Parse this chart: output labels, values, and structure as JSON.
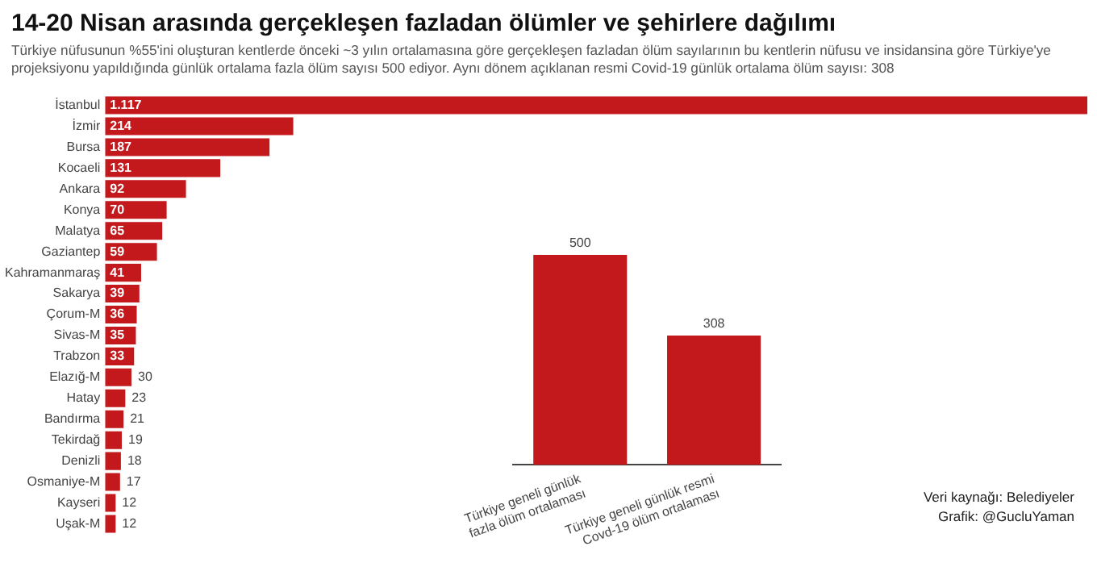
{
  "chart_data": [
    {
      "type": "bar",
      "orientation": "horizontal",
      "title": "14-20 Nisan arasında gerçekleşen fazladan ölümler ve şehirlere dağılımı",
      "subtitle": "Türkiye nüfusunun %55'ini oluşturan kentlerde önceki ~3 yılın ortalamasına göre gerçekleşen fazladan ölüm sayılarının bu kentlerin nüfusu ve insidansina göre Türkiye'ye projeksiyonu yapıldığında günlük ortalama fazla ölüm sayısı 500 ediyor. Aynı dönem açıklanan resmi Covid-19 günlük ortalama ölüm sayısı: 308",
      "categories": [
        "İstanbul",
        "İzmir",
        "Bursa",
        "Kocaeli",
        "Ankara",
        "Konya",
        "Malatya",
        "Gaziantep",
        "Kahramanmaraş",
        "Sakarya",
        "Çorum-M",
        "Sivas-M",
        "Trabzon",
        "Elazığ-M",
        "Hatay",
        "Bandırma",
        "Tekirdağ",
        "Denizli",
        "Osmaniye-M",
        "Kayseri",
        "Uşak-M"
      ],
      "values": [
        1117,
        214,
        187,
        131,
        92,
        70,
        65,
        59,
        41,
        39,
        36,
        35,
        33,
        30,
        23,
        21,
        19,
        18,
        17,
        12,
        12
      ],
      "value_labels": [
        "1.117",
        "214",
        "187",
        "131",
        "92",
        "70",
        "65",
        "59",
        "41",
        "39",
        "36",
        "35",
        "33",
        "30",
        "23",
        "21",
        "19",
        "18",
        "17",
        "12",
        "12"
      ],
      "color": "#c4191c",
      "xlim": [
        0,
        1117
      ],
      "tick_labels": "y",
      "grid": false,
      "legend": false
    },
    {
      "type": "bar",
      "categories": [
        "Türkiye geneli günlük fazla ölüm ortalaması",
        "Türkiye geneli günlük resmi Covd-19 ölüm ortalaması"
      ],
      "values": [
        500,
        308
      ],
      "color": "#c4191c",
      "ylim": [
        0,
        500
      ],
      "tick_labels": "x",
      "data_labels": true,
      "grid": false,
      "legend": false,
      "annotations": [
        "Veri kaynağı: Belediyeler",
        "Grafik: @GucluYaman"
      ]
    }
  ]
}
